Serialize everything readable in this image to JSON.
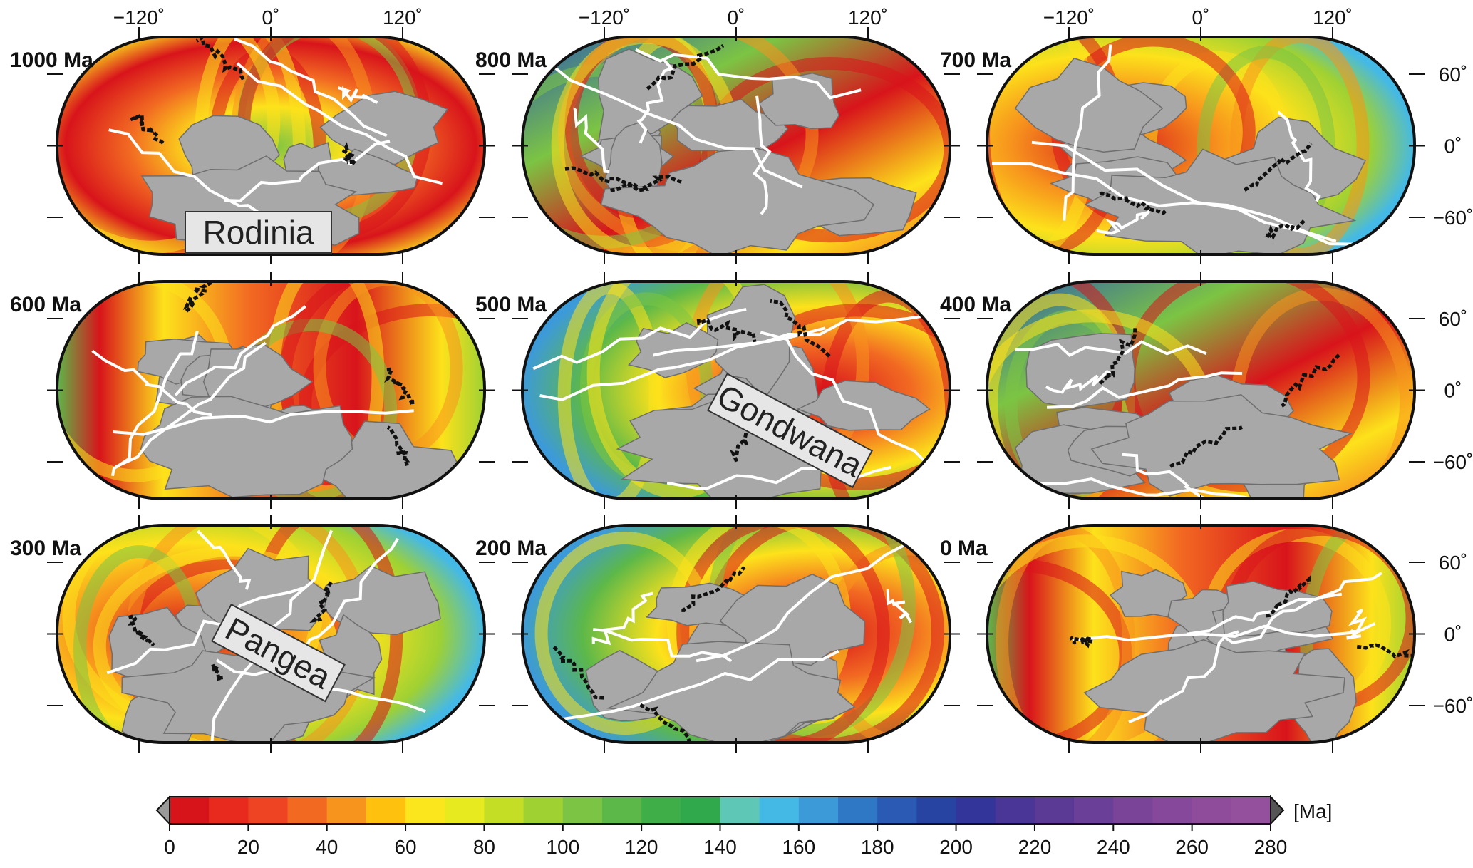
{
  "colorbar": {
    "unit": "[Ma]",
    "ticks": [
      "0",
      "20",
      "40",
      "60",
      "80",
      "100",
      "120",
      "140",
      "160",
      "180",
      "200",
      "220",
      "240",
      "260",
      "280"
    ],
    "min": 0,
    "max": 280,
    "colors": [
      "#d8141b",
      "#e82a1e",
      "#ee4423",
      "#f26a22",
      "#f7941d",
      "#fdc10e",
      "#fbe51d",
      "#e6ea1f",
      "#c4de26",
      "#9fd133",
      "#7cc443",
      "#5cb849",
      "#3fae49",
      "#2fa94c",
      "#5fc7b6",
      "#45b9e6",
      "#3d9ad9",
      "#2f78c6",
      "#2a5ab3",
      "#2744a3",
      "#33359a",
      "#4a3696",
      "#5b3a96",
      "#6a3f98",
      "#7a4499",
      "#86489a",
      "#8f4c9b",
      "#94509c"
    ]
  },
  "axes": {
    "lon_labels": [
      "−120˚",
      "0˚",
      "120˚"
    ],
    "lat_labels": [
      "60˚",
      "0˚",
      "−60˚"
    ]
  },
  "panels": [
    {
      "age": "1000 Ma",
      "name": "Rodinia"
    },
    {
      "age": "800 Ma",
      "name": ""
    },
    {
      "age": "700 Ma",
      "name": ""
    },
    {
      "age": "600 Ma",
      "name": ""
    },
    {
      "age": "500 Ma",
      "name": "Gondwana"
    },
    {
      "age": "400 Ma",
      "name": ""
    },
    {
      "age": "300 Ma",
      "name": "Pangea"
    },
    {
      "age": "200 Ma",
      "name": ""
    },
    {
      "age": "0 Ma",
      "name": ""
    }
  ]
}
